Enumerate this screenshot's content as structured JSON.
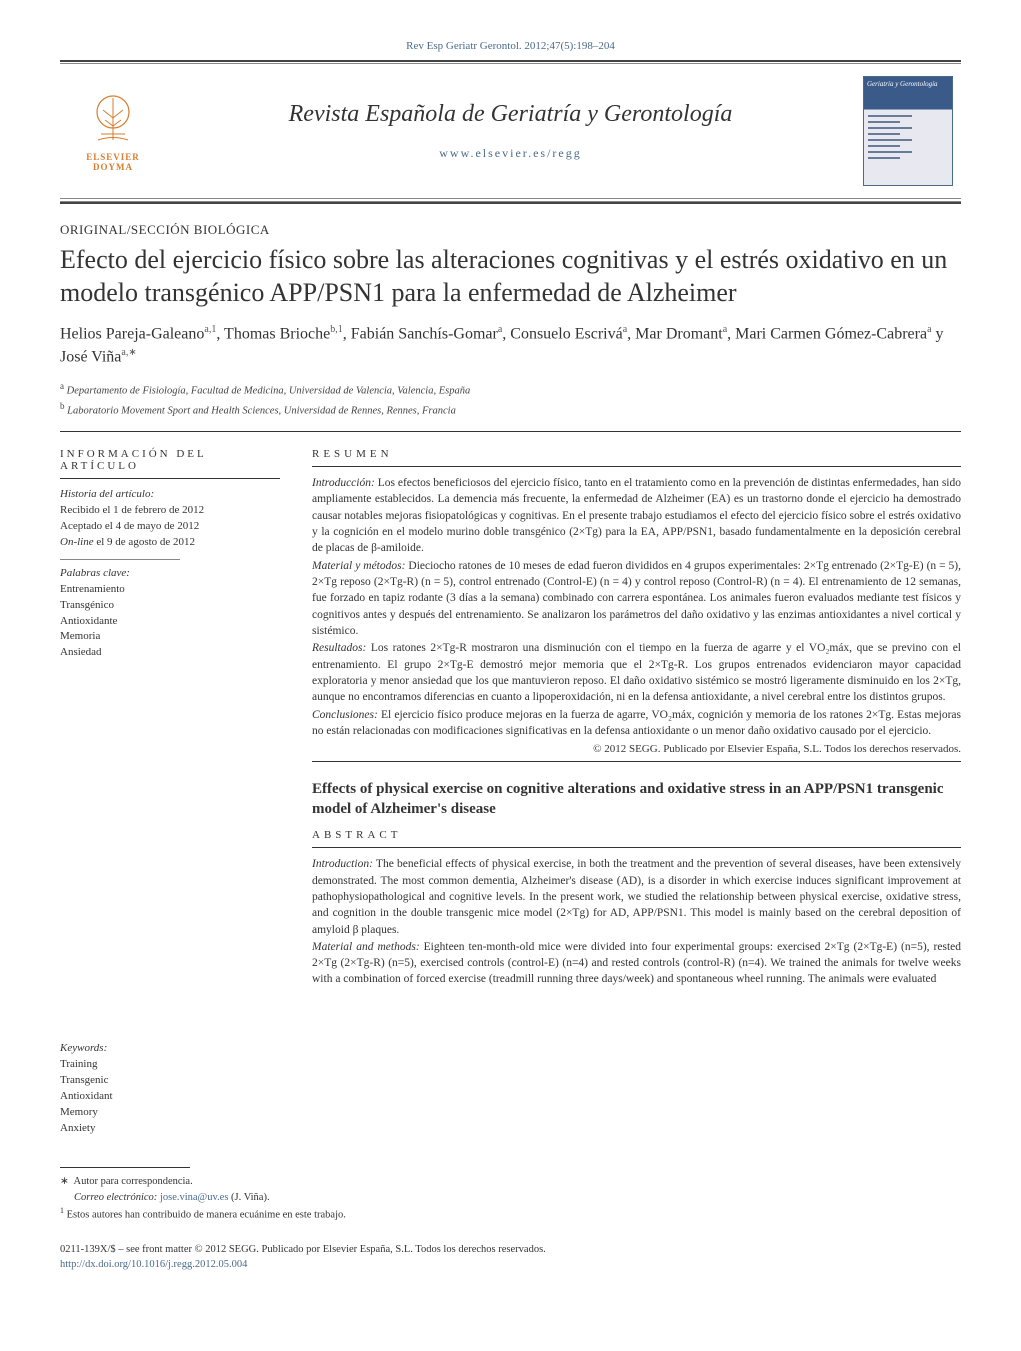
{
  "citation": "Rev Esp Geriatr Gerontol. 2012;47(5):198–204",
  "journal": {
    "title": "Revista Española de Geriatría y Gerontología",
    "url": "www.elsevier.es/regg",
    "publisher_logo_text": "ELSEVIER DOYMA",
    "cover_title": "Geriatría y Gerontología"
  },
  "article": {
    "type": "ORIGINAL/SECCIÓN BIOLÓGICA",
    "title": "Efecto del ejercicio físico sobre las alteraciones cognitivas y el estrés oxidativo en un modelo transgénico APP/PSN1 para la enfermedad de Alzheimer",
    "authors_html": "Helios Pareja-Galeano<sup>a,1</sup>, Thomas Brioche<sup>b,1</sup>, Fabián Sanchís-Gomar<sup>a</sup>, Consuelo Escrivá<sup>a</sup>, Mar Dromant<sup>a</sup>, Mari Carmen Gómez-Cabrera<sup>a</sup> y José Viña<sup>a,∗</sup>",
    "affiliations": [
      {
        "key": "a",
        "text": "Departamento de Fisiología, Facultad de Medicina, Universidad de Valencia, Valencia, España"
      },
      {
        "key": "b",
        "text": "Laboratorio Movement Sport and Health Sciences, Universidad de Rennes, Rennes, Francia"
      }
    ]
  },
  "info": {
    "heading": "información del artículo",
    "history_label": "Historia del artículo:",
    "received": "Recibido el 1 de febrero de 2012",
    "accepted": "Aceptado el 4 de mayo de 2012",
    "online": "On-line el 9 de agosto de 2012",
    "kw_es_label": "Palabras clave:",
    "kw_es": [
      "Entrenamiento",
      "Transgénico",
      "Antioxidante",
      "Memoria",
      "Ansiedad"
    ],
    "kw_en_label": "Keywords:",
    "kw_en": [
      "Training",
      "Transgenic",
      "Antioxidant",
      "Memory",
      "Anxiety"
    ]
  },
  "resumen": {
    "heading": "resumen",
    "intro_label": "Introducción:",
    "intro": "Los efectos beneficiosos del ejercicio físico, tanto en el tratamiento como en la prevención de distintas enfermedades, han sido ampliamente establecidos. La demencia más frecuente, la enfermedad de Alzheimer (EA) es un trastorno donde el ejercicio ha demostrado causar notables mejoras fisiopatológicas y cognitivas. En el presente trabajo estudiamos el efecto del ejercicio físico sobre el estrés oxidativo y la cognición en el modelo murino doble transgénico (2×Tg) para la EA, APP/PSN1, basado fundamentalmente en la deposición cerebral de placas de β-amiloide.",
    "methods_label": "Material y métodos:",
    "methods": "Dieciocho ratones de 10 meses de edad fueron divididos en 4 grupos experimentales: 2×Tg entrenado (2×Tg-E) (n = 5), 2×Tg reposo (2×Tg-R) (n = 5), control entrenado (Control-E) (n = 4) y control reposo (Control-R) (n = 4). El entrenamiento de 12 semanas, fue forzado en tapiz rodante (3 días a la semana) combinado con carrera espontánea. Los animales fueron evaluados mediante test físicos y cognitivos antes y después del entrenamiento. Se analizaron los parámetros del daño oxidativo y las enzimas antioxidantes a nivel cortical y sistémico.",
    "results_label": "Resultados:",
    "results": "Los ratones 2×Tg-R mostraron una disminución con el tiempo en la fuerza de agarre y el VO₂máx, que se previno con el entrenamiento. El grupo 2×Tg-E demostró mejor memoria que el 2×Tg-R. Los grupos entrenados evidenciaron mayor capacidad exploratoria y menor ansiedad que los que mantuvieron reposo. El daño oxidativo sistémico se mostró ligeramente disminuido en los 2×Tg, aunque no encontramos diferencias en cuanto a lipoperoxidación, ni en la defensa antioxidante, a nivel cerebral entre los distintos grupos.",
    "conclusions_label": "Conclusiones:",
    "conclusions": "El ejercicio físico produce mejoras en la fuerza de agarre, VO₂máx, cognición y memoria de los ratones 2×Tg. Estas mejoras no están relacionadas con modificaciones significativas en la defensa antioxidante o un menor daño oxidativo causado por el ejercicio.",
    "copyright": "© 2012 SEGG. Publicado por Elsevier España, S.L. Todos los derechos reservados."
  },
  "abstract_en": {
    "title": "Effects of physical exercise on cognitive alterations and oxidative stress in an APP/PSN1 transgenic model of Alzheimer's disease",
    "heading": "abstract",
    "intro_label": "Introduction:",
    "intro": "The beneficial effects of physical exercise, in both the treatment and the prevention of several diseases, have been extensively demonstrated. The most common dementia, Alzheimer's disease (AD), is a disorder in which exercise induces significant improvement at pathophysiopathological and cognitive levels. In the present work, we studied the relationship between physical exercise, oxidative stress, and cognition in the double transgenic mice model (2×Tg) for AD, APP/PSN1. This model is mainly based on the cerebral deposition of amyloid β plaques.",
    "methods_label": "Material and methods:",
    "methods": "Eighteen ten-month-old mice were divided into four experimental groups: exercised 2×Tg (2×Tg-E) (n=5), rested 2×Tg (2×Tg-R) (n=5), exercised controls (control-E) (n=4) and rested controls (control-R) (n=4). We trained the animals for twelve weeks with a combination of forced exercise (treadmill running three days/week) and spontaneous wheel running. The animals were evaluated"
  },
  "footnotes": {
    "corresp_marker": "∗",
    "corresp_text": "Autor para correspondencia.",
    "email_label": "Correo electrónico:",
    "email": "jose.vina@uv.es",
    "email_name": "(J. Viña).",
    "equal_marker": "1",
    "equal_text": "Estos autores han contribuido de manera ecuánime en este trabajo."
  },
  "footer": {
    "line1": "0211-139X/$ – see front matter © 2012 SEGG. Publicado por Elsevier España, S.L. Todos los derechos reservados.",
    "doi": "http://dx.doi.org/10.1016/j.regg.2012.05.004"
  },
  "colors": {
    "link": "#4a6a8a",
    "logo": "#d97d2e",
    "text": "#333333",
    "rule_dark": "#444444",
    "rule_light": "#888888"
  }
}
